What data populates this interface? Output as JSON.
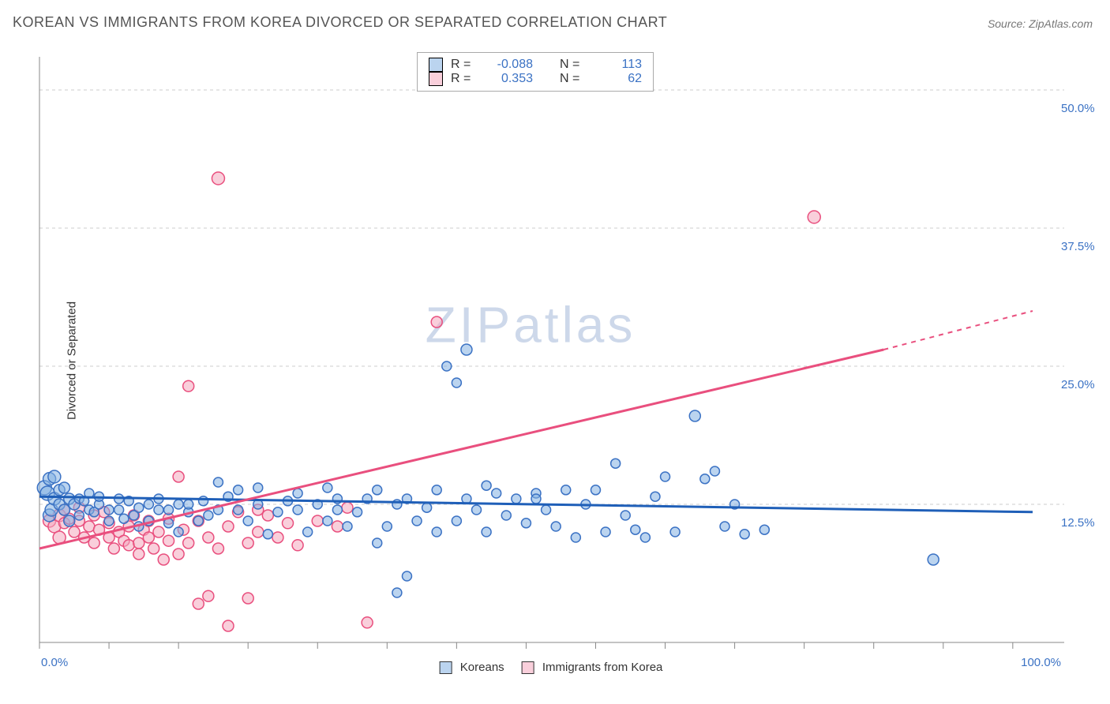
{
  "title": "KOREAN VS IMMIGRANTS FROM KOREA DIVORCED OR SEPARATED CORRELATION CHART",
  "source": "Source: ZipAtlas.com",
  "watermark": "ZIPatlas",
  "ylabel": "Divorced or Separated",
  "chart": {
    "type": "scatter",
    "xlim": [
      0,
      100
    ],
    "ylim": [
      0,
      53
    ],
    "x_ticks_minor": [
      0,
      7,
      14,
      21,
      28,
      35,
      42,
      49,
      56,
      63,
      70,
      77,
      84,
      91,
      98
    ],
    "y_gridlines": [
      12.5,
      25.0,
      37.5,
      50.0
    ],
    "y_tick_labels": [
      "12.5%",
      "25.0%",
      "37.5%",
      "50.0%"
    ],
    "x_left_label": "0.0%",
    "x_right_label": "100.0%",
    "background_color": "#ffffff",
    "grid_color": "#cccccc",
    "marker_radius_small": 6,
    "marker_radius_large": 9,
    "series": [
      {
        "name": "Koreans",
        "color_fill": "#83b0e1",
        "color_stroke": "#3b72c4",
        "R": -0.088,
        "N": 113,
        "trend": {
          "x1": 0,
          "y1": 13.2,
          "x2": 100,
          "y2": 11.8
        },
        "points": [
          [
            0.5,
            14,
            9
          ],
          [
            0.8,
            13.5,
            9
          ],
          [
            1,
            14.8,
            8
          ],
          [
            1,
            11.5,
            8
          ],
          [
            1.2,
            12,
            8
          ],
          [
            1.5,
            13,
            8
          ],
          [
            1.5,
            15,
            8
          ],
          [
            2,
            12.5,
            7
          ],
          [
            2,
            13.8,
            7
          ],
          [
            2.5,
            12,
            7
          ],
          [
            2.5,
            14,
            7
          ],
          [
            3,
            11,
            7
          ],
          [
            3,
            13,
            7
          ],
          [
            3.5,
            12.5,
            7
          ],
          [
            4,
            13,
            6
          ],
          [
            4,
            11.5,
            6
          ],
          [
            4.5,
            12.8,
            6
          ],
          [
            5,
            13.5,
            6
          ],
          [
            5,
            12,
            6
          ],
          [
            5.5,
            11.8,
            6
          ],
          [
            6,
            12.5,
            6
          ],
          [
            6,
            13.2,
            6
          ],
          [
            7,
            12,
            6
          ],
          [
            7,
            11,
            6
          ],
          [
            8,
            13,
            6
          ],
          [
            8,
            12,
            6
          ],
          [
            8.5,
            11.2,
            6
          ],
          [
            9,
            12.8,
            6
          ],
          [
            9.5,
            11.5,
            6
          ],
          [
            10,
            10.5,
            6
          ],
          [
            10,
            12.2,
            6
          ],
          [
            11,
            11,
            6
          ],
          [
            11,
            12.5,
            6
          ],
          [
            12,
            12,
            6
          ],
          [
            12,
            13,
            6
          ],
          [
            13,
            10.8,
            6
          ],
          [
            13,
            12,
            6
          ],
          [
            14,
            12.5,
            6
          ],
          [
            14,
            10,
            6
          ],
          [
            15,
            11.8,
            6
          ],
          [
            15,
            12.5,
            6
          ],
          [
            16,
            11,
            6
          ],
          [
            16.5,
            12.8,
            6
          ],
          [
            17,
            11.5,
            6
          ],
          [
            18,
            14.5,
            6
          ],
          [
            18,
            12,
            6
          ],
          [
            19,
            13.2,
            6
          ],
          [
            20,
            12,
            6
          ],
          [
            20,
            13.8,
            6
          ],
          [
            21,
            11,
            6
          ],
          [
            22,
            14,
            6
          ],
          [
            22,
            12.5,
            6
          ],
          [
            23,
            9.8,
            6
          ],
          [
            24,
            11.8,
            6
          ],
          [
            25,
            12.8,
            6
          ],
          [
            26,
            12,
            6
          ],
          [
            26,
            13.5,
            6
          ],
          [
            27,
            10,
            6
          ],
          [
            28,
            12.5,
            6
          ],
          [
            29,
            14,
            6
          ],
          [
            29,
            11,
            6
          ],
          [
            30,
            12,
            6
          ],
          [
            30,
            13,
            6
          ],
          [
            31,
            10.5,
            6
          ],
          [
            32,
            11.8,
            6
          ],
          [
            33,
            13,
            6
          ],
          [
            34,
            13.8,
            6
          ],
          [
            34,
            9,
            6
          ],
          [
            35,
            10.5,
            6
          ],
          [
            36,
            12.5,
            6
          ],
          [
            36,
            4.5,
            6
          ],
          [
            37,
            13,
            6
          ],
          [
            37,
            6,
            6
          ],
          [
            38,
            11,
            6
          ],
          [
            39,
            12.2,
            6
          ],
          [
            40,
            13.8,
            6
          ],
          [
            40,
            10,
            6
          ],
          [
            41,
            25,
            6
          ],
          [
            42,
            11,
            6
          ],
          [
            42,
            23.5,
            6
          ],
          [
            43,
            13,
            6
          ],
          [
            43,
            26.5,
            7
          ],
          [
            44,
            12,
            6
          ],
          [
            45,
            14.2,
            6
          ],
          [
            45,
            10,
            6
          ],
          [
            46,
            13.5,
            6
          ],
          [
            47,
            11.5,
            6
          ],
          [
            48,
            13,
            6
          ],
          [
            49,
            10.8,
            6
          ],
          [
            50,
            13.5,
            6
          ],
          [
            50,
            13,
            6
          ],
          [
            51,
            12,
            6
          ],
          [
            52,
            10.5,
            6
          ],
          [
            53,
            13.8,
            6
          ],
          [
            54,
            9.5,
            6
          ],
          [
            55,
            12.5,
            6
          ],
          [
            56,
            13.8,
            6
          ],
          [
            57,
            10,
            6
          ],
          [
            58,
            16.2,
            6
          ],
          [
            59,
            11.5,
            6
          ],
          [
            60,
            10.2,
            6
          ],
          [
            61,
            9.5,
            6
          ],
          [
            62,
            13.2,
            6
          ],
          [
            63,
            15,
            6
          ],
          [
            64,
            10,
            6
          ],
          [
            66,
            20.5,
            7
          ],
          [
            67,
            14.8,
            6
          ],
          [
            68,
            15.5,
            6
          ],
          [
            69,
            10.5,
            6
          ],
          [
            70,
            12.5,
            6
          ],
          [
            71,
            9.8,
            6
          ],
          [
            73,
            10.2,
            6
          ],
          [
            90,
            7.5,
            7
          ]
        ]
      },
      {
        "name": "Immigrants from Korea",
        "color_fill": "#f4a7bd",
        "color_stroke": "#e94f7e",
        "R": 0.353,
        "N": 62,
        "trend": {
          "x1": 0,
          "y1": 8.5,
          "x2": 85,
          "y2": 26.5
        },
        "trend_extrapolate": {
          "x1": 85,
          "y1": 26.5,
          "x2": 100,
          "y2": 30
        },
        "points": [
          [
            1,
            11,
            8
          ],
          [
            1.5,
            10.5,
            8
          ],
          [
            2,
            11.5,
            8
          ],
          [
            2,
            9.5,
            8
          ],
          [
            2.5,
            12,
            7
          ],
          [
            2.5,
            10.8,
            7
          ],
          [
            3,
            11.2,
            7
          ],
          [
            3.5,
            10,
            7
          ],
          [
            4,
            11,
            7
          ],
          [
            4,
            12.2,
            7
          ],
          [
            4.5,
            9.5,
            7
          ],
          [
            5,
            10.5,
            7
          ],
          [
            5.5,
            11.5,
            7
          ],
          [
            5.5,
            9,
            7
          ],
          [
            6,
            10.2,
            7
          ],
          [
            6.5,
            11.8,
            7
          ],
          [
            7,
            9.5,
            7
          ],
          [
            7,
            10.8,
            7
          ],
          [
            7.5,
            8.5,
            7
          ],
          [
            8,
            10,
            7
          ],
          [
            8.5,
            9.2,
            7
          ],
          [
            9,
            8.8,
            7
          ],
          [
            9,
            10.5,
            7
          ],
          [
            9.5,
            11.5,
            7
          ],
          [
            10,
            9,
            7
          ],
          [
            10,
            8,
            7
          ],
          [
            10.5,
            10.2,
            7
          ],
          [
            11,
            9.5,
            7
          ],
          [
            11,
            11,
            7
          ],
          [
            11.5,
            8.5,
            7
          ],
          [
            12,
            10,
            7
          ],
          [
            12.5,
            7.5,
            7
          ],
          [
            13,
            9.2,
            7
          ],
          [
            13,
            11.2,
            7
          ],
          [
            14,
            8,
            7
          ],
          [
            14,
            15,
            7
          ],
          [
            14.5,
            10.2,
            7
          ],
          [
            15,
            23.2,
            7
          ],
          [
            15,
            9,
            7
          ],
          [
            16,
            11,
            7
          ],
          [
            16,
            3.5,
            7
          ],
          [
            17,
            9.5,
            7
          ],
          [
            17,
            4.2,
            7
          ],
          [
            18,
            8.5,
            7
          ],
          [
            18,
            42,
            8
          ],
          [
            19,
            10.5,
            7
          ],
          [
            19,
            1.5,
            7
          ],
          [
            20,
            11.8,
            7
          ],
          [
            21,
            9,
            7
          ],
          [
            21,
            4,
            7
          ],
          [
            22,
            12,
            7
          ],
          [
            22,
            10,
            7
          ],
          [
            23,
            11.5,
            7
          ],
          [
            24,
            9.5,
            7
          ],
          [
            25,
            10.8,
            7
          ],
          [
            26,
            8.8,
            7
          ],
          [
            28,
            11,
            7
          ],
          [
            30,
            10.5,
            7
          ],
          [
            31,
            12.2,
            7
          ],
          [
            33,
            1.8,
            7
          ],
          [
            40,
            29,
            7
          ],
          [
            78,
            38.5,
            8
          ]
        ]
      }
    ]
  },
  "legend_top": {
    "rows": [
      {
        "r_label": "R =",
        "r_value": "-0.088",
        "n_label": "N =",
        "n_value": "113"
      },
      {
        "r_label": "R =",
        "r_value": "0.353",
        "n_label": "N =",
        "n_value": "62"
      }
    ]
  },
  "legend_bottom": {
    "items": [
      "Koreans",
      "Immigrants from Korea"
    ]
  }
}
